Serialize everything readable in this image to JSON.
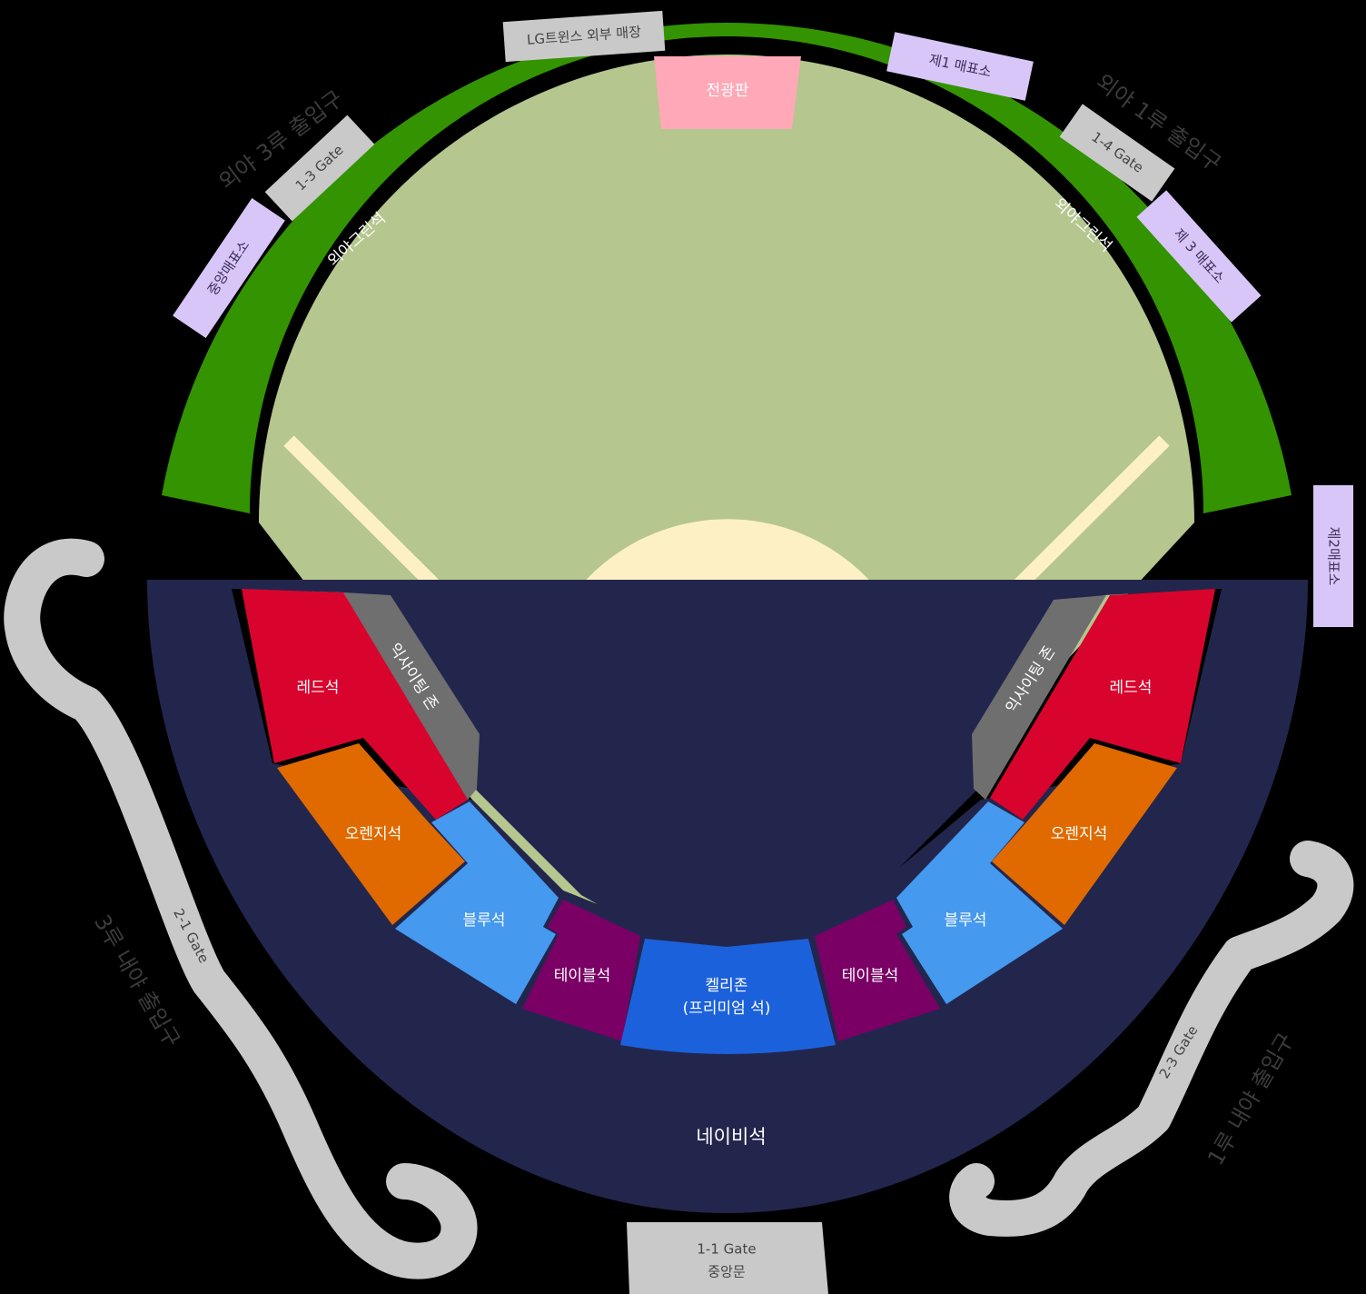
{
  "colors": {
    "background": "#000000",
    "outfield_green": "#339300",
    "field": "#b5c68f",
    "dirt": "#fef0c5",
    "navy": "#22264d",
    "red": "#d9042d",
    "orange": "#e06a00",
    "blue": "#4599ef",
    "table": "#7a0066",
    "kelly": "#1c61dc",
    "exciting": "#6f6f6f",
    "board": "#ffa9b8",
    "ticket": "#d8c6f8",
    "gate_gray": "#c9c9c9"
  },
  "sections": {
    "outfield_left": "외야그린석",
    "outfield_right": "외야그린석",
    "scoreboard": "전광판",
    "red_left": "레드석",
    "red_right": "레드석",
    "exciting_left": "익사이팅 존",
    "exciting_right": "익사이팅 존",
    "orange_left": "오렌지석",
    "orange_right": "오렌지석",
    "blue_left": "블루석",
    "blue_right": "블루석",
    "table_left": "테이블석",
    "table_right": "테이블석",
    "kelly_line1": "켈리존",
    "kelly_line2": "(프리미엄 석)",
    "navy": "네이비석"
  },
  "tags": {
    "lg_store": "LG트윈스 외부 매장",
    "ticket1": "제1 매표소",
    "ticket2": "제2매표소",
    "ticket3": "제 3 매표소",
    "ticket_central": "중앙매표소",
    "gate_1_3": "1-3 Gate",
    "gate_1_4": "1-4 Gate",
    "gate_2_1": "2-1 Gate",
    "gate_2_3": "2-3 Gate",
    "gate_1_1_line1": "1-1 Gate",
    "gate_1_1_line2": "중앙문"
  },
  "entrances": {
    "outfield_3b": "외야 3루 출입구",
    "outfield_1b": "외야 1루 출입구",
    "infield_3b": "3루 내야 출입구",
    "infield_1b": "1루 내야 출입구"
  }
}
